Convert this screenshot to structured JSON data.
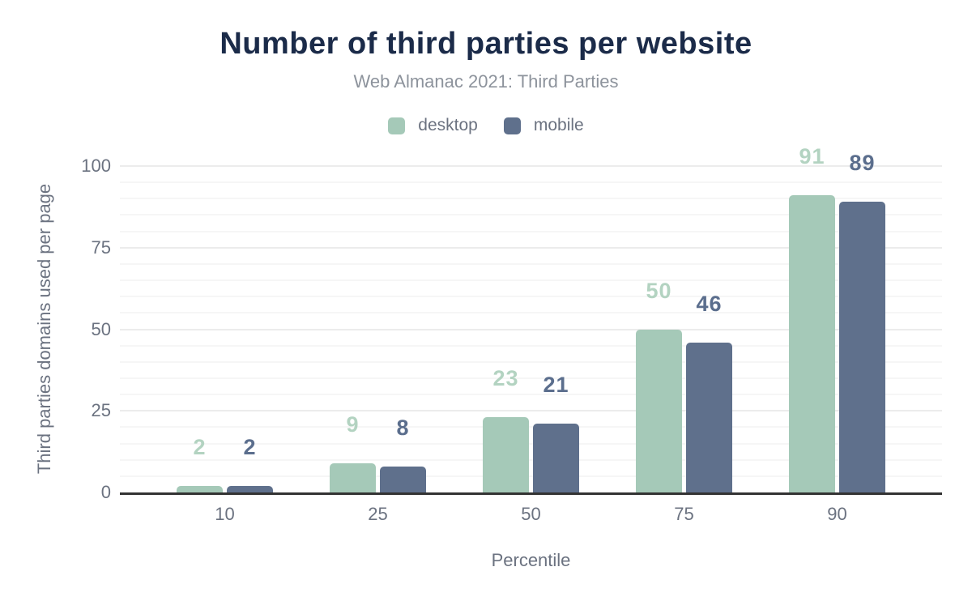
{
  "chart_data": {
    "type": "bar",
    "title": "Number of third parties per website",
    "subtitle": "Web Almanac 2021: Third Parties",
    "categories": [
      "10",
      "25",
      "50",
      "75",
      "90"
    ],
    "series": [
      {
        "name": "desktop",
        "values": [
          2,
          9,
          23,
          50,
          91
        ],
        "color": "#a5c9b8",
        "label_color": "#b3d3c1"
      },
      {
        "name": "mobile",
        "values": [
          2,
          8,
          21,
          46,
          89
        ],
        "color": "#5f708c",
        "label_color": "#5b6e8d"
      }
    ],
    "xlabel": "Percentile",
    "ylabel": "Third parties domains used per page",
    "ylim": [
      0,
      100
    ],
    "yticks": [
      0,
      25,
      50,
      75,
      100
    ],
    "grid": {
      "on": true,
      "minor_step": 5,
      "major_step": 25,
      "minor_color": "#f6f6f6",
      "major_color": "#ececec"
    },
    "legend_position": "top",
    "colors": {
      "title": "#1b2b49",
      "subtitle": "#8d939c",
      "axis_text": "#6b7280",
      "axis_line": "#333333",
      "background": "#ffffff"
    }
  }
}
